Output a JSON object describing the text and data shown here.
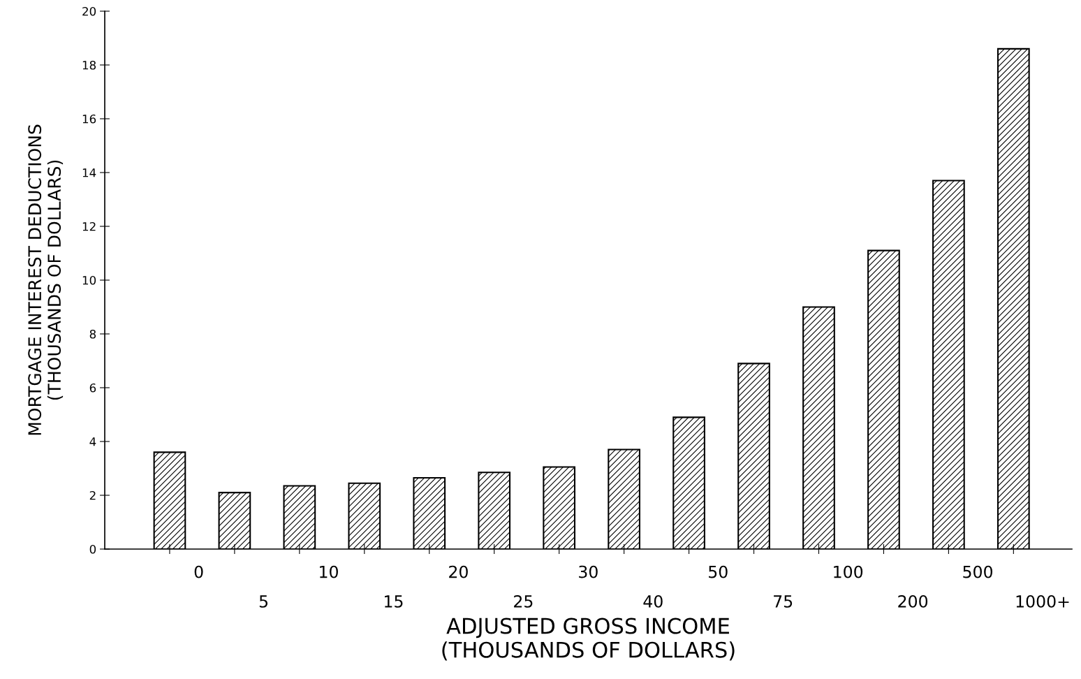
{
  "chart_data": {
    "type": "bar",
    "xlabel": "ADJUSTED GROSS INCOME\n(THOUSANDS OF DOLLARS)",
    "ylabel": "MORTGAGE INTEREST DEDUCTIONS\n(THOUSANDS OF DOLLARS)",
    "categories": [
      "0",
      "5",
      "10",
      "15",
      "20",
      "25",
      "30",
      "40",
      "50",
      "75",
      "100",
      "200",
      "500",
      "1000+"
    ],
    "values": [
      3.6,
      2.1,
      2.35,
      2.45,
      2.65,
      2.85,
      3.05,
      3.7,
      4.9,
      6.9,
      9.0,
      11.1,
      13.7,
      18.6
    ],
    "color": "#000000",
    "ylim": [
      0,
      20
    ],
    "yticks": [
      0,
      2,
      4,
      6,
      8,
      10,
      12,
      14,
      16,
      18,
      20
    ],
    "grid": false
  }
}
